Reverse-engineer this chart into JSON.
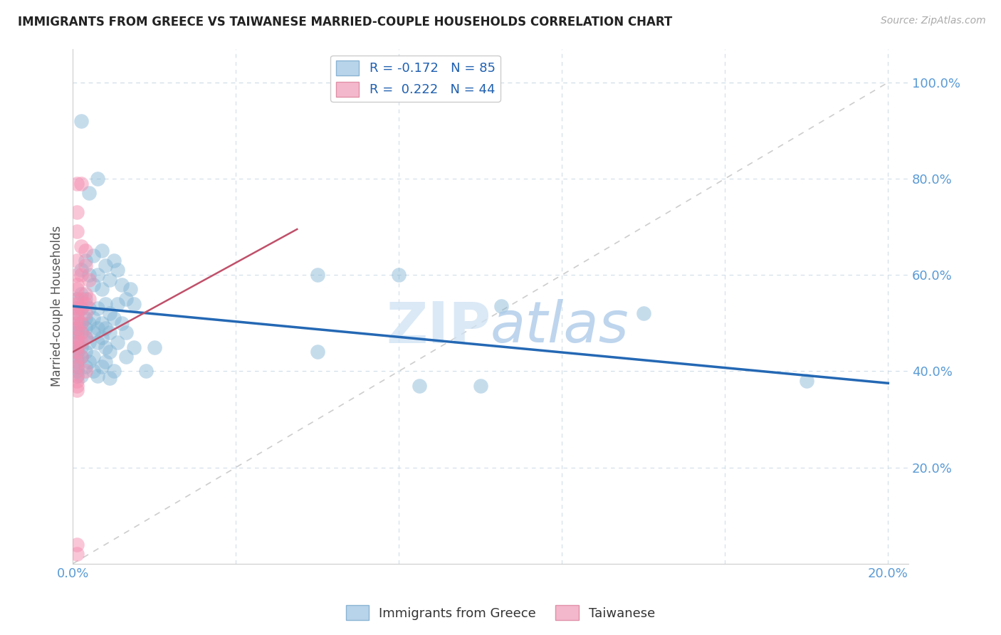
{
  "title": "IMMIGRANTS FROM GREECE VS TAIWANESE MARRIED-COUPLE HOUSEHOLDS CORRELATION CHART",
  "source": "Source: ZipAtlas.com",
  "ylabel": "Married-couple Households",
  "watermark_zip": "ZIP",
  "watermark_atlas": "atlas",
  "blue_color": "#7fb3d3",
  "pink_color": "#f48fb1",
  "blue_line_color": "#2468b4",
  "pink_line_color": "#c0506a",
  "diagonal_color": "#c8c8c8",
  "tick_color": "#5b9bd5",
  "grid_color": "#d0dde8",
  "legend_text_color": "#2060b0",
  "legend_r_color": "#222222",
  "title_color": "#222222",
  "source_color": "#aaaaaa",
  "ylabel_color": "#555555",
  "regression_blue": [
    0.0,
    0.535,
    0.2,
    0.375
  ],
  "regression_pink": [
    0.0,
    0.44,
    0.055,
    0.695
  ],
  "blue_scatter": [
    [
      0.002,
      0.92
    ],
    [
      0.006,
      0.8
    ],
    [
      0.004,
      0.77
    ],
    [
      0.007,
      0.65
    ],
    [
      0.005,
      0.64
    ],
    [
      0.01,
      0.63
    ],
    [
      0.008,
      0.62
    ],
    [
      0.003,
      0.63
    ],
    [
      0.011,
      0.61
    ],
    [
      0.002,
      0.61
    ],
    [
      0.004,
      0.6
    ],
    [
      0.006,
      0.6
    ],
    [
      0.009,
      0.59
    ],
    [
      0.005,
      0.58
    ],
    [
      0.012,
      0.58
    ],
    [
      0.007,
      0.57
    ],
    [
      0.014,
      0.57
    ],
    [
      0.002,
      0.56
    ],
    [
      0.001,
      0.55
    ],
    [
      0.003,
      0.55
    ],
    [
      0.008,
      0.54
    ],
    [
      0.011,
      0.54
    ],
    [
      0.015,
      0.54
    ],
    [
      0.013,
      0.55
    ],
    [
      0.001,
      0.53
    ],
    [
      0.002,
      0.53
    ],
    [
      0.004,
      0.53
    ],
    [
      0.006,
      0.53
    ],
    [
      0.009,
      0.52
    ],
    [
      0.001,
      0.52
    ],
    [
      0.003,
      0.51
    ],
    [
      0.005,
      0.51
    ],
    [
      0.01,
      0.51
    ],
    [
      0.001,
      0.5
    ],
    [
      0.002,
      0.5
    ],
    [
      0.004,
      0.5
    ],
    [
      0.007,
      0.5
    ],
    [
      0.012,
      0.5
    ],
    [
      0.001,
      0.49
    ],
    [
      0.003,
      0.49
    ],
    [
      0.006,
      0.49
    ],
    [
      0.008,
      0.49
    ],
    [
      0.001,
      0.48
    ],
    [
      0.002,
      0.48
    ],
    [
      0.005,
      0.48
    ],
    [
      0.009,
      0.48
    ],
    [
      0.013,
      0.48
    ],
    [
      0.001,
      0.47
    ],
    [
      0.003,
      0.47
    ],
    [
      0.007,
      0.47
    ],
    [
      0.001,
      0.46
    ],
    [
      0.004,
      0.46
    ],
    [
      0.006,
      0.46
    ],
    [
      0.011,
      0.46
    ],
    [
      0.001,
      0.45
    ],
    [
      0.002,
      0.45
    ],
    [
      0.008,
      0.45
    ],
    [
      0.015,
      0.45
    ],
    [
      0.02,
      0.45
    ],
    [
      0.001,
      0.44
    ],
    [
      0.003,
      0.44
    ],
    [
      0.009,
      0.44
    ],
    [
      0.001,
      0.43
    ],
    [
      0.002,
      0.43
    ],
    [
      0.005,
      0.43
    ],
    [
      0.013,
      0.43
    ],
    [
      0.001,
      0.42
    ],
    [
      0.004,
      0.42
    ],
    [
      0.008,
      0.42
    ],
    [
      0.001,
      0.41
    ],
    [
      0.003,
      0.41
    ],
    [
      0.007,
      0.41
    ],
    [
      0.001,
      0.4
    ],
    [
      0.005,
      0.4
    ],
    [
      0.01,
      0.4
    ],
    [
      0.018,
      0.4
    ],
    [
      0.001,
      0.39
    ],
    [
      0.002,
      0.39
    ],
    [
      0.006,
      0.39
    ],
    [
      0.009,
      0.385
    ],
    [
      0.06,
      0.6
    ],
    [
      0.08,
      0.6
    ],
    [
      0.105,
      0.535
    ],
    [
      0.14,
      0.52
    ],
    [
      0.18,
      0.38
    ],
    [
      0.06,
      0.44
    ],
    [
      0.085,
      0.37
    ],
    [
      0.1,
      0.37
    ]
  ],
  "pink_scatter": [
    [
      0.001,
      0.79
    ],
    [
      0.002,
      0.79
    ],
    [
      0.001,
      0.73
    ],
    [
      0.001,
      0.69
    ],
    [
      0.002,
      0.66
    ],
    [
      0.003,
      0.65
    ],
    [
      0.001,
      0.63
    ],
    [
      0.003,
      0.62
    ],
    [
      0.001,
      0.6
    ],
    [
      0.002,
      0.6
    ],
    [
      0.004,
      0.59
    ],
    [
      0.001,
      0.58
    ],
    [
      0.001,
      0.57
    ],
    [
      0.003,
      0.56
    ],
    [
      0.001,
      0.55
    ],
    [
      0.002,
      0.55
    ],
    [
      0.004,
      0.55
    ],
    [
      0.001,
      0.54
    ],
    [
      0.003,
      0.54
    ],
    [
      0.001,
      0.53
    ],
    [
      0.002,
      0.53
    ],
    [
      0.001,
      0.52
    ],
    [
      0.003,
      0.52
    ],
    [
      0.001,
      0.51
    ],
    [
      0.001,
      0.5
    ],
    [
      0.002,
      0.5
    ],
    [
      0.001,
      0.49
    ],
    [
      0.002,
      0.48
    ],
    [
      0.001,
      0.47
    ],
    [
      0.003,
      0.47
    ],
    [
      0.001,
      0.46
    ],
    [
      0.002,
      0.46
    ],
    [
      0.001,
      0.45
    ],
    [
      0.001,
      0.44
    ],
    [
      0.002,
      0.43
    ],
    [
      0.001,
      0.42
    ],
    [
      0.001,
      0.41
    ],
    [
      0.003,
      0.4
    ],
    [
      0.001,
      0.39
    ],
    [
      0.001,
      0.38
    ],
    [
      0.001,
      0.37
    ],
    [
      0.001,
      0.36
    ],
    [
      0.001,
      0.04
    ],
    [
      0.001,
      0.02
    ]
  ],
  "xlim": [
    0.0,
    0.205
  ],
  "ylim": [
    0.0,
    1.07
  ],
  "xtick_vals": [
    0.0,
    0.04,
    0.08,
    0.12,
    0.16,
    0.2
  ],
  "xtick_labels": [
    "0.0%",
    "",
    "",
    "",
    "",
    "20.0%"
  ],
  "ytick_vals": [
    0.2,
    0.4,
    0.6,
    0.8,
    1.0
  ],
  "ytick_labels": [
    "20.0%",
    "40.0%",
    "60.0%",
    "80.0%",
    "100.0%"
  ]
}
